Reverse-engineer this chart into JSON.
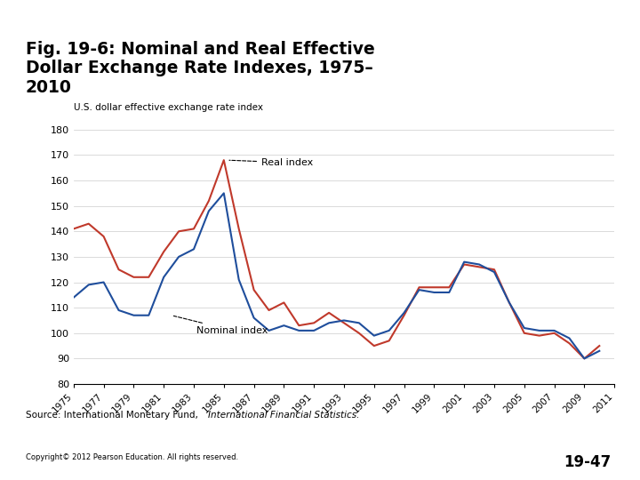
{
  "title_line1": "Fig. 19-6: Nominal and Real Effective",
  "title_line2": "Dollar Exchange Rate Indexes, 1975–",
  "title_line3": "2010",
  "ylabel": "U.S. dollar effective exchange rate index",
  "source_normal": "Source: International Monetary Fund, ",
  "source_italic": "International Financial Statistics.",
  "copyright_text": "Copyright© 2012 Pearson Education. All rights reserved.",
  "slide_number": "19-47",
  "background_color": "#ffffff",
  "header_color": "#c8d87a",
  "footer_color": "#c8d87a",
  "ylim": [
    80,
    180
  ],
  "yticks": [
    80,
    90,
    100,
    110,
    120,
    130,
    140,
    150,
    160,
    170,
    180
  ],
  "years": [
    1975,
    1976,
    1977,
    1978,
    1979,
    1980,
    1981,
    1982,
    1983,
    1984,
    1985,
    1986,
    1987,
    1988,
    1989,
    1990,
    1991,
    1992,
    1993,
    1994,
    1995,
    1996,
    1997,
    1998,
    1999,
    2000,
    2001,
    2002,
    2003,
    2004,
    2005,
    2006,
    2007,
    2008,
    2009,
    2010
  ],
  "nominal": [
    114,
    119,
    120,
    109,
    107,
    107,
    122,
    130,
    133,
    148,
    155,
    121,
    106,
    101,
    103,
    101,
    101,
    104,
    105,
    104,
    99,
    101,
    108,
    117,
    116,
    116,
    128,
    127,
    124,
    112,
    102,
    101,
    101,
    98,
    90,
    93
  ],
  "real": [
    141,
    143,
    138,
    125,
    122,
    122,
    132,
    140,
    141,
    152,
    168,
    141,
    117,
    109,
    112,
    103,
    104,
    108,
    104,
    100,
    95,
    97,
    107,
    118,
    118,
    118,
    127,
    126,
    125,
    112,
    100,
    99,
    100,
    96,
    90,
    95
  ],
  "nominal_color": "#1f4e9c",
  "real_color": "#c0392b",
  "nominal_label": "Nominal index",
  "real_label": "Real index",
  "xtick_years": [
    1975,
    1977,
    1979,
    1981,
    1983,
    1985,
    1987,
    1989,
    1991,
    1993,
    1995,
    1997,
    1999,
    2001,
    2003,
    2005,
    2007,
    2009,
    2011
  ]
}
